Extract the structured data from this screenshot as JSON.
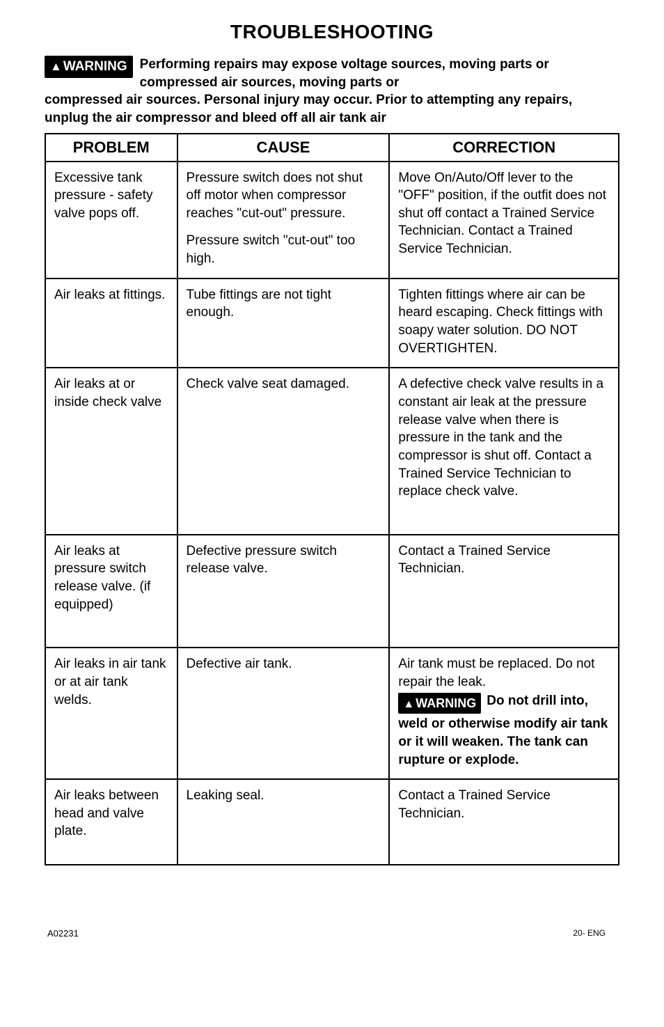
{
  "page_title": "TROUBLESHOOTING",
  "warning_badge": "WARNING",
  "intro": {
    "line1": "Performing repairs may expose voltage sources, moving parts or compressed air sources, moving parts or",
    "line2": "compressed air sources. Personal injury may occur. Prior to attempting any repairs, unplug the air compressor and bleed off all air tank air"
  },
  "headers": {
    "problem": "PROBLEM",
    "cause": "CAUSE",
    "correction": "CORRECTION"
  },
  "rows": [
    {
      "problem": "Excessive tank pressure - safety valve pops off.",
      "cause_a": "Pressure switch does not shut off  motor when compressor reaches \"cut-out\" pressure.",
      "cause_b": "Pressure switch \"cut-out\" too high.",
      "correction": "Move On/Auto/Off lever to the \"OFF\" position,  if the outfit does not shut off contact a Trained Service Technician. Contact a Trained Service Technician."
    },
    {
      "problem": "Air leaks at fittings.",
      "cause": "Tube fittings are not tight enough.",
      "correction": "Tighten fittings where air can be heard escaping. Check fittings with soapy water solution. DO NOT OVERTIGHTEN."
    },
    {
      "problem": "Air leaks at or inside check valve",
      "cause": "Check valve seat damaged.",
      "correction": "A defective check valve results in a constant air leak at the pressure release valve when there is pressure in the tank and the compressor is shut off. Contact a Trained Service Technician to replace check valve."
    },
    {
      "problem": "Air leaks at pressure switch release valve. (if equipped)",
      "cause": "Defective pressure switch release valve.",
      "correction": "Contact a Trained Service Technician."
    },
    {
      "problem": "Air leaks in air tank or at air tank welds.",
      "cause": "Defective air tank.",
      "correction_pre": "Air tank must be replaced. Do not repair the leak.",
      "correction_badge_side": "Do not drill into,",
      "correction_post": "weld or otherwise modify air tank or it will weaken. The tank can rupture or explode."
    },
    {
      "problem": "Air leaks between head and valve plate.",
      "cause": "Leaking seal.",
      "correction": "Contact a Trained Service Technician."
    }
  ],
  "footer": {
    "left": "A02231",
    "right": "20- ENG"
  }
}
